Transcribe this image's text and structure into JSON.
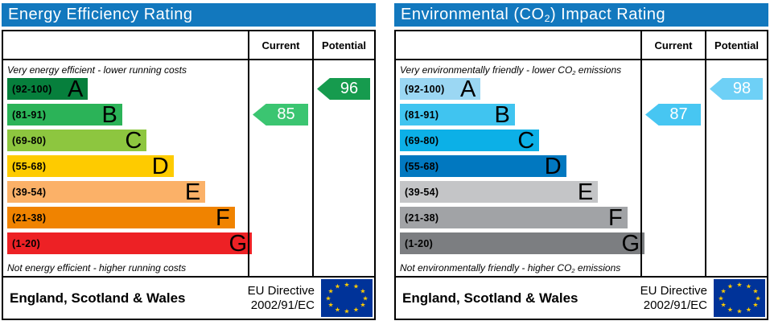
{
  "colors": {
    "header_bg": "#1278be",
    "flag_bg": "#003399",
    "flag_star": "#ffcc00"
  },
  "chart_data": [
    {
      "type": "bar",
      "id": "energy-efficiency",
      "title": {
        "pre": "Energy Efficiency Rating",
        "sub": "",
        "post": ""
      },
      "col_current": "Current",
      "col_potential": "Potential",
      "top_caption": {
        "pre": "Very energy efficient - lower running costs",
        "sub": "",
        "post": ""
      },
      "bottom_caption": {
        "pre": "Not energy efficient - higher running costs",
        "sub": "",
        "post": ""
      },
      "categories": [
        "A",
        "B",
        "C",
        "D",
        "E",
        "F",
        "G"
      ],
      "bands": [
        {
          "letter": "A",
          "range": "(92-100)",
          "color": "#067f3c",
          "width_pct": 33
        },
        {
          "letter": "B",
          "range": "(81-91)",
          "color": "#2bb358",
          "width_pct": 47
        },
        {
          "letter": "C",
          "range": "(69-80)",
          "color": "#8dc63f",
          "width_pct": 57
        },
        {
          "letter": "D",
          "range": "(55-68)",
          "color": "#fecb00",
          "width_pct": 68
        },
        {
          "letter": "E",
          "range": "(39-54)",
          "color": "#fbb168",
          "width_pct": 81
        },
        {
          "letter": "F",
          "range": "(21-38)",
          "color": "#f08300",
          "width_pct": 93
        },
        {
          "letter": "G",
          "range": "(1-20)",
          "color": "#ed2125",
          "width_pct": 100
        }
      ],
      "current": {
        "value": "85",
        "band": "B",
        "color": "#3bc571"
      },
      "potential": {
        "value": "96",
        "band": "A",
        "color": "#169b4e"
      },
      "footer": {
        "region": "England, Scotland & Wales",
        "directive_line1": "EU Directive",
        "directive_line2": "2002/91/EC"
      }
    },
    {
      "type": "bar",
      "id": "co2-impact",
      "title": {
        "pre": "Environmental (CO",
        "sub": "2",
        "post": ") Impact Rating"
      },
      "col_current": "Current",
      "col_potential": "Potential",
      "top_caption": {
        "pre": "Very environmentally friendly - lower CO",
        "sub": "2",
        "post": " emissions"
      },
      "bottom_caption": {
        "pre": "Not environmentally friendly - higher CO",
        "sub": "2",
        "post": " emissions"
      },
      "categories": [
        "A",
        "B",
        "C",
        "D",
        "E",
        "F",
        "G"
      ],
      "bands": [
        {
          "letter": "A",
          "range": "(92-100)",
          "color": "#9bd7f3",
          "width_pct": 33
        },
        {
          "letter": "B",
          "range": "(81-91)",
          "color": "#40c4f0",
          "width_pct": 47
        },
        {
          "letter": "C",
          "range": "(69-80)",
          "color": "#0cb0e7",
          "width_pct": 57
        },
        {
          "letter": "D",
          "range": "(55-68)",
          "color": "#0178c0",
          "width_pct": 68
        },
        {
          "letter": "E",
          "range": "(39-54)",
          "color": "#c4c5c7",
          "width_pct": 81
        },
        {
          "letter": "F",
          "range": "(21-38)",
          "color": "#a1a3a6",
          "width_pct": 93
        },
        {
          "letter": "G",
          "range": "(1-20)",
          "color": "#7c7e81",
          "width_pct": 100
        }
      ],
      "current": {
        "value": "87",
        "band": "B",
        "color": "#47c6f2"
      },
      "potential": {
        "value": "98",
        "band": "A",
        "color": "#6ed0f6"
      },
      "footer": {
        "region": "England, Scotland & Wales",
        "directive_line1": "EU Directive",
        "directive_line2": "2002/91/EC"
      }
    }
  ]
}
